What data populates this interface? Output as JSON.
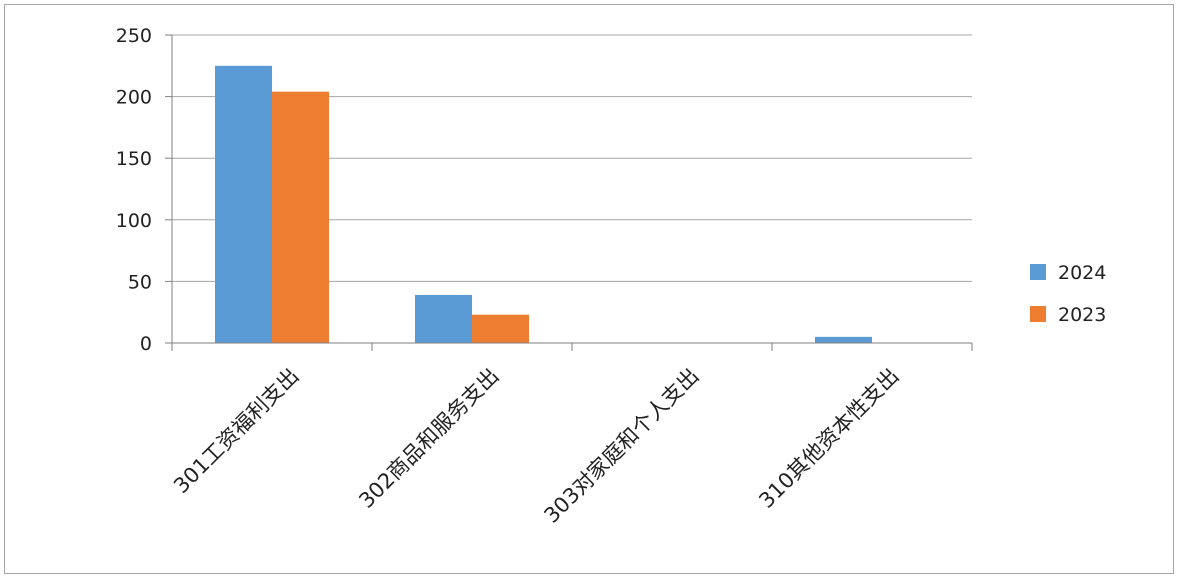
{
  "chart_data": {
    "type": "bar",
    "categories": [
      "301工资福利支出",
      "302商品和服务支出",
      "303对家庭和个人支出",
      "310其他资本性支出"
    ],
    "series": [
      {
        "name": "2024",
        "color": "#5b9bd5",
        "values": [
          225,
          39,
          0,
          5
        ]
      },
      {
        "name": "2023",
        "color": "#ed7d31",
        "values": [
          204,
          23,
          0,
          0
        ]
      }
    ],
    "yticks": [
      0,
      50,
      100,
      150,
      200,
      250
    ],
    "ylim": [
      0,
      250
    ],
    "grid": true,
    "legend": "right",
    "title": "",
    "xlabel": "",
    "ylabel": ""
  }
}
